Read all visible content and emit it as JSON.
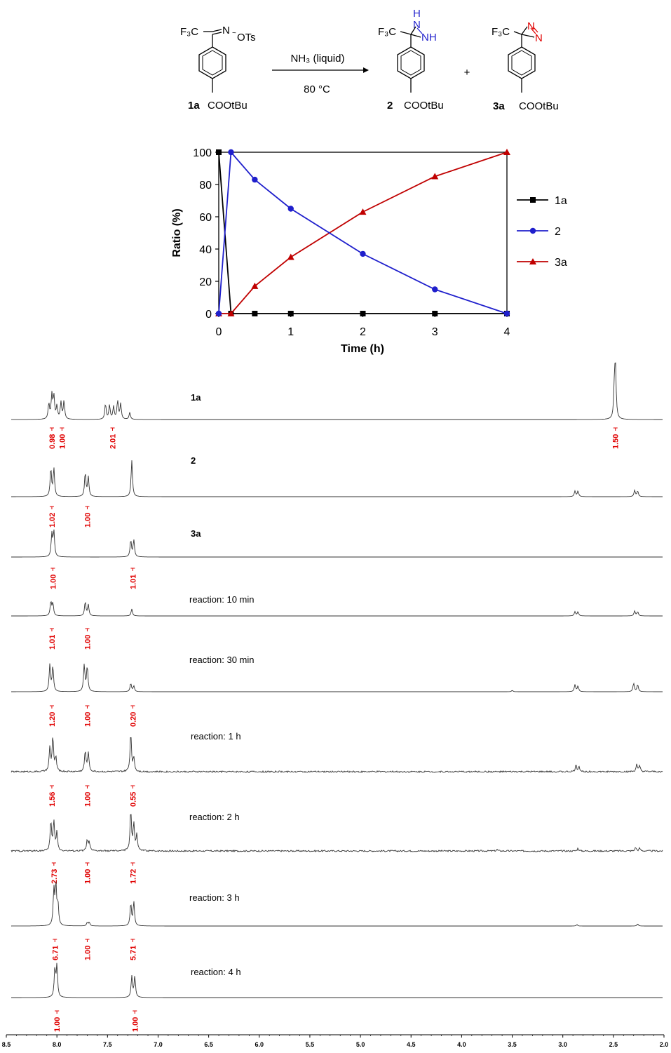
{
  "scheme": {
    "reactant": {
      "cf3": "F₃C",
      "n": "N",
      "ots": "OTs",
      "label": "1a",
      "ester": "COOtBu"
    },
    "conditions": {
      "reagent": "NH₃ (liquid)",
      "temp": "80 °C"
    },
    "product2": {
      "cf3": "F₃C",
      "nh_top": "H",
      "n_top": "N",
      "nh": "NH",
      "label": "2",
      "ester": "COOtBu"
    },
    "plus": "+",
    "product3": {
      "cf3": "F₃C",
      "n1": "N",
      "n2": "N",
      "label": "3a",
      "ester": "COOtBu"
    },
    "colors": {
      "diaziridine": "#1f1fcc",
      "diazirine": "#e00000",
      "black": "#000000"
    }
  },
  "chart_data": {
    "type": "line",
    "title": "",
    "xlabel": "Time (h)",
    "ylabel": "Ratio (%)",
    "xlim": [
      0,
      4
    ],
    "ylim": [
      0,
      100
    ],
    "xticks": [
      "0",
      "1",
      "2",
      "3",
      "4"
    ],
    "yticks": [
      "0",
      "20",
      "40",
      "60",
      "80",
      "100"
    ],
    "grid": false,
    "legend": "right",
    "series": [
      {
        "name": "1a",
        "color": "#000000",
        "marker": "square",
        "x": [
          0,
          0.17,
          0.5,
          1,
          2,
          3,
          4
        ],
        "y": [
          100,
          0,
          0,
          0,
          0,
          0,
          0
        ]
      },
      {
        "name": "2",
        "color": "#1f1fcc",
        "marker": "circle",
        "x": [
          0,
          0.17,
          0.5,
          1,
          2,
          3,
          4
        ],
        "y": [
          0,
          100,
          83,
          65,
          37,
          15,
          0
        ]
      },
      {
        "name": "3a",
        "color": "#c00000",
        "marker": "triangle",
        "x": [
          0,
          0.17,
          0.5,
          1,
          2,
          3,
          4
        ],
        "y": [
          0,
          0,
          17,
          35,
          63,
          85,
          100
        ]
      }
    ]
  },
  "nmr": {
    "ppm_range": [
      8.5,
      2.0
    ],
    "axis_ticks": [
      "8.5",
      "8.0",
      "7.5",
      "7.0",
      "6.5",
      "6.0",
      "5.5",
      "5.0",
      "4.5",
      "4.0",
      "3.5",
      "3.0",
      "2.5",
      "2.0"
    ],
    "spectra": [
      {
        "label": "1a",
        "integrals": [
          {
            "ppm": 8.05,
            "value": "0.98"
          },
          {
            "ppm": 7.95,
            "value": "1.00"
          },
          {
            "ppm": 7.45,
            "value": "2.01"
          },
          {
            "ppm": 2.48,
            "value": "1.50"
          }
        ]
      },
      {
        "label": "2",
        "integrals": [
          {
            "ppm": 8.05,
            "value": "1.02"
          },
          {
            "ppm": 7.7,
            "value": "1.00"
          }
        ]
      },
      {
        "label": "3a",
        "integrals": [
          {
            "ppm": 8.04,
            "value": "1.00"
          },
          {
            "ppm": 7.25,
            "value": "1.01"
          }
        ]
      },
      {
        "label": "reaction: 10 min",
        "integrals": [
          {
            "ppm": 8.05,
            "value": "1.01"
          },
          {
            "ppm": 7.7,
            "value": "1.00"
          }
        ]
      },
      {
        "label": "reaction: 30 min",
        "integrals": [
          {
            "ppm": 8.05,
            "value": "1.20"
          },
          {
            "ppm": 7.7,
            "value": "1.00"
          },
          {
            "ppm": 7.25,
            "value": "0.20"
          }
        ]
      },
      {
        "label": "reaction: 1 h",
        "integrals": [
          {
            "ppm": 8.05,
            "value": "1.56"
          },
          {
            "ppm": 7.7,
            "value": "1.00"
          },
          {
            "ppm": 7.25,
            "value": "0.55"
          }
        ]
      },
      {
        "label": "reaction: 2 h",
        "integrals": [
          {
            "ppm": 8.03,
            "value": "2.73"
          },
          {
            "ppm": 7.7,
            "value": "1.00"
          },
          {
            "ppm": 7.25,
            "value": "1.72"
          }
        ]
      },
      {
        "label": "reaction: 3 h",
        "integrals": [
          {
            "ppm": 8.02,
            "value": "6.71"
          },
          {
            "ppm": 7.7,
            "value": "1.00"
          },
          {
            "ppm": 7.25,
            "value": "5.71"
          }
        ]
      },
      {
        "label": "reaction: 4 h",
        "integrals": [
          {
            "ppm": 8.0,
            "value": "1.00"
          },
          {
            "ppm": 7.23,
            "value": "1.00"
          }
        ]
      }
    ]
  }
}
